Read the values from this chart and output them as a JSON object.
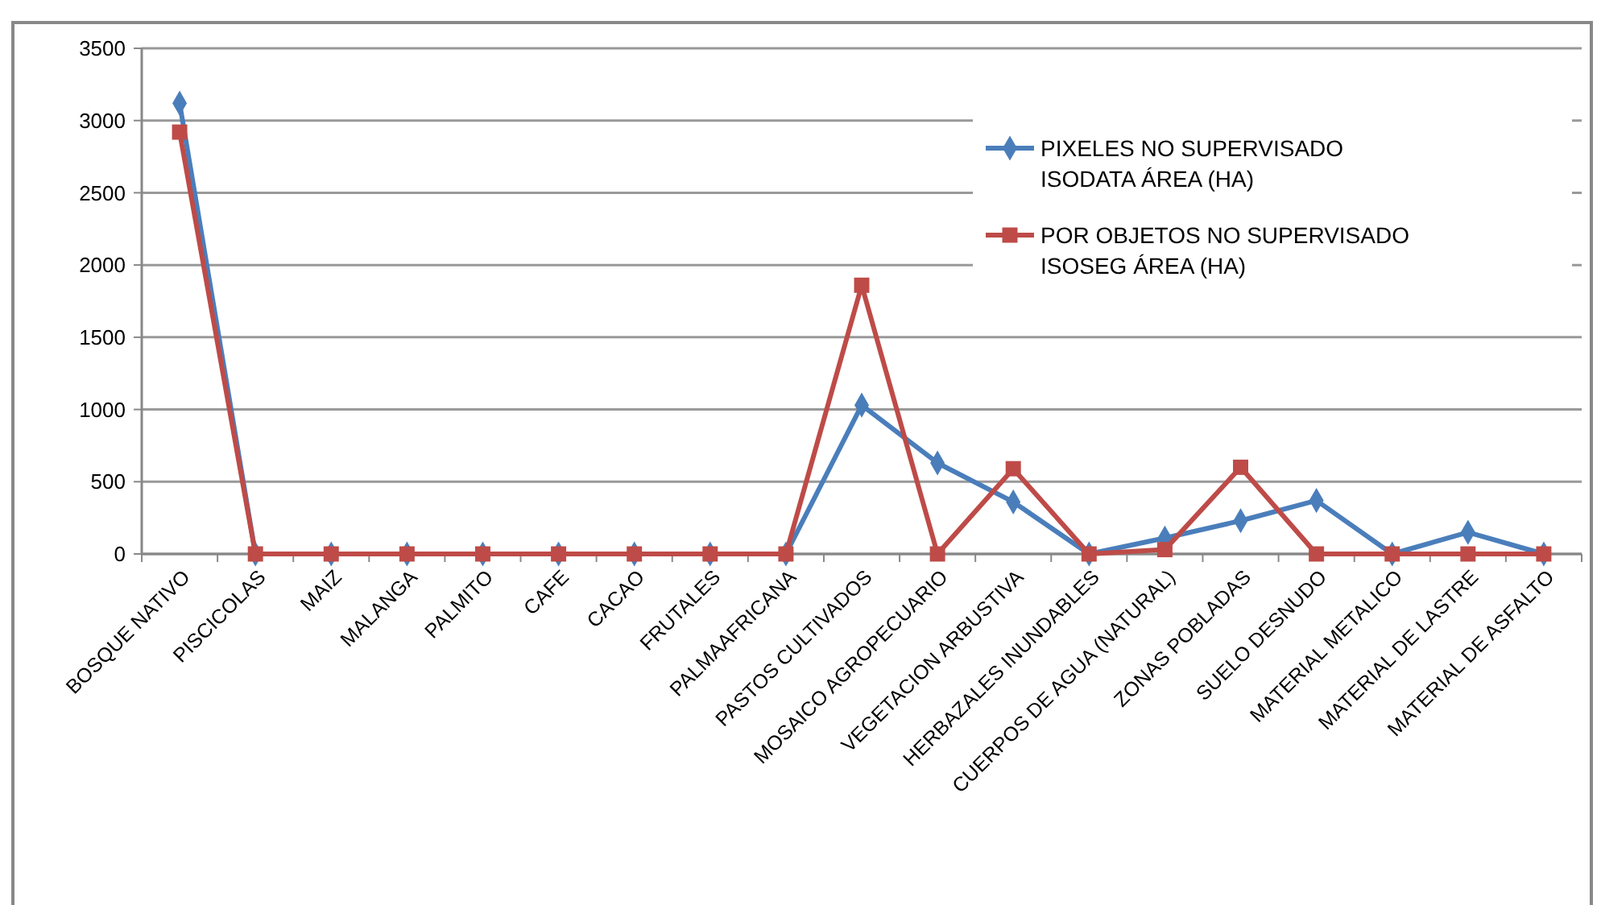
{
  "chart_data": {
    "type": "line",
    "categories": [
      "BOSQUE NATIVO",
      "PISCICOLAS",
      "MAIZ",
      "MALANGA",
      "PALMITO",
      "CAFE",
      "CACAO",
      "FRUTALES",
      "PALMAAFRICANA",
      "PASTOS CULTIVADOS",
      "MOSAICO AGROPECUARIO",
      "VEGETACION ARBUSTIVA",
      "HERBAZALES INUNDABLES",
      "CUERPOS DE AGUA (NATURAL)",
      "ZONAS POBLADAS",
      "SUELO DESNUDO",
      "MATERIAL METALICO",
      "MATERIAL DE LASTRE",
      "MATERIAL DE ASFALTO"
    ],
    "series": [
      {
        "name": "PIXELES NO SUPERVISADO ISODATA ÁREA (HA)",
        "color": "#4a7ebb",
        "marker": "diamond",
        "values": [
          3120,
          0,
          0,
          0,
          0,
          0,
          0,
          0,
          0,
          1030,
          630,
          360,
          0,
          110,
          230,
          370,
          0,
          150,
          0
        ]
      },
      {
        "name": "POR OBJETOS NO SUPERVISADO ISOSEG ÁREA (HA)",
        "color": "#be4b48",
        "marker": "square",
        "values": [
          2920,
          0,
          0,
          0,
          0,
          0,
          0,
          0,
          0,
          1860,
          0,
          590,
          0,
          30,
          600,
          0,
          0,
          0,
          0
        ]
      }
    ],
    "ylim": [
      0,
      3500
    ],
    "yticks": [
      0,
      500,
      1000,
      1500,
      2000,
      2500,
      3000,
      3500
    ],
    "grid": "y",
    "legend": "right",
    "line_style": "solid"
  }
}
